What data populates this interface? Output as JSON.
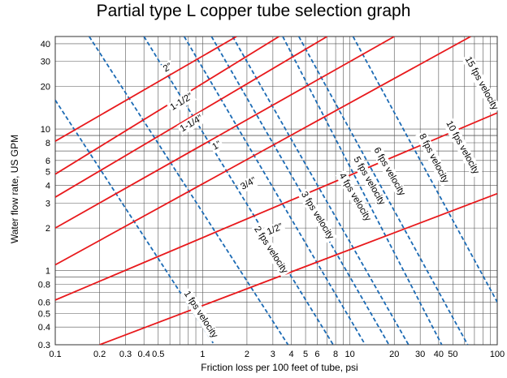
{
  "chart_data": {
    "type": "line",
    "title": "Partial type L copper tube selection graph",
    "xlabel": "Friction loss per 100 feet of tube, psi",
    "ylabel": "Water flow rate, US GPM",
    "x_scale": "log",
    "y_scale": "log",
    "xlim": [
      0.1,
      100
    ],
    "ylim": [
      0.3,
      45
    ],
    "x_ticks": [
      "0.1",
      "0.2",
      "0.3",
      "0.4",
      "0.5",
      "1",
      "2",
      "3",
      "4",
      "5",
      "6",
      "8",
      "10",
      "20",
      "30",
      "40",
      "50",
      "100"
    ],
    "y_ticks": [
      "0.3",
      "0.4",
      "0.5",
      "0.6",
      "0.8",
      "1",
      "2",
      "3",
      "4",
      "5",
      "6",
      "8",
      "10",
      "20",
      "30",
      "40"
    ],
    "x_tick_values": [
      0.1,
      0.2,
      0.3,
      0.4,
      0.5,
      1,
      2,
      3,
      4,
      5,
      6,
      8,
      10,
      20,
      30,
      40,
      50,
      100
    ],
    "y_tick_values": [
      0.3,
      0.4,
      0.5,
      0.6,
      0.8,
      1,
      2,
      3,
      4,
      5,
      6,
      8,
      10,
      20,
      30,
      40
    ],
    "grid": true,
    "series_groups": {
      "tube_sizes": {
        "color": "#e8191c",
        "style": "solid",
        "series": [
          {
            "name": "2”",
            "x": [
              0.1,
              1.7
            ],
            "y": [
              8.2,
              45
            ]
          },
          {
            "name": "1-1/2”",
            "x": [
              0.1,
              3.3
            ],
            "y": [
              4.8,
              45
            ]
          },
          {
            "name": "1-1/4”",
            "x": [
              0.1,
              7.0
            ],
            "y": [
              3.3,
              45
            ]
          },
          {
            "name": "1”",
            "x": [
              0.1,
              20
            ],
            "y": [
              2.0,
              45
            ]
          },
          {
            "name": "3/4”",
            "x": [
              0.1,
              66
            ],
            "y": [
              1.1,
              45
            ]
          },
          {
            "name": "1/2”",
            "x": [
              0.1,
              100
            ],
            "y": [
              0.62,
              13
            ]
          },
          {
            "name": "",
            "x": [
              0.2,
              100
            ],
            "y": [
              0.3,
              3.5
            ]
          }
        ]
      },
      "velocities": {
        "color": "#1b6ab4",
        "style": "dashed",
        "series": [
          {
            "name": "1 fps velocity",
            "x": [
              0.1,
              1.2
            ],
            "y": [
              16,
              0.3
            ]
          },
          {
            "name": "2 fps velocity",
            "x": [
              0.17,
              3.8
            ],
            "y": [
              45,
              0.3
            ]
          },
          {
            "name": "3 fps velocity",
            "x": [
              0.4,
              7.7
            ],
            "y": [
              45,
              0.3
            ]
          },
          {
            "name": "4 fps velocity",
            "x": [
              0.75,
              12.7
            ],
            "y": [
              45,
              0.3
            ]
          },
          {
            "name": "5 fps velocity",
            "x": [
              1.15,
              18.4
            ],
            "y": [
              45,
              0.3
            ]
          },
          {
            "name": "6 fps velocity",
            "x": [
              1.6,
              25
            ],
            "y": [
              45,
              0.3
            ]
          },
          {
            "name": "8 fps velocity",
            "x": [
              3.5,
              42
            ],
            "y": [
              45,
              0.3
            ]
          },
          {
            "name": "10 fps velocity",
            "x": [
              4.5,
              63
            ],
            "y": [
              45,
              0.3
            ]
          },
          {
            "name": "15 fps velocity",
            "x": [
              10.5,
              100
            ],
            "y": [
              45,
              0.6
            ]
          }
        ]
      }
    },
    "curve_labels": [
      {
        "text": "2”",
        "group": "tube_sizes",
        "index": 0,
        "x": 0.58,
        "y": 27
      },
      {
        "text": "1-1/2”",
        "group": "tube_sizes",
        "index": 1,
        "x": 0.72,
        "y": 15.5
      },
      {
        "text": "1-1/4”",
        "group": "tube_sizes",
        "index": 2,
        "x": 0.84,
        "y": 10.9
      },
      {
        "text": "1”",
        "group": "tube_sizes",
        "index": 3,
        "x": 1.25,
        "y": 7.6
      },
      {
        "text": "3/4”",
        "group": "tube_sizes",
        "index": 4,
        "x": 2.05,
        "y": 4.1
      },
      {
        "text": "1/2”",
        "group": "tube_sizes",
        "index": 5,
        "x": 3.1,
        "y": 1.95
      },
      {
        "text": "1 fps velocity",
        "group": "velocities",
        "index": 0,
        "x": 0.97,
        "y": 0.49
      },
      {
        "text": "2 fps velocity",
        "group": "velocities",
        "index": 1,
        "x": 2.9,
        "y": 1.4
      },
      {
        "text": "3 fps velocity",
        "group": "velocities",
        "index": 2,
        "x": 6.0,
        "y": 2.45
      },
      {
        "text": "4 fps velocity",
        "group": "velocities",
        "index": 3,
        "x": 10.8,
        "y": 3.3
      },
      {
        "text": "5 fps velocity",
        "group": "velocities",
        "index": 4,
        "x": 13.5,
        "y": 4.3
      },
      {
        "text": "6 fps velocity",
        "group": "velocities",
        "index": 5,
        "x": 18.5,
        "y": 5.0
      },
      {
        "text": "8 fps velocity",
        "group": "velocities",
        "index": 6,
        "x": 37,
        "y": 6.2
      },
      {
        "text": "10 fps velocity",
        "group": "velocities",
        "index": 7,
        "x": 58,
        "y": 7.4
      },
      {
        "text": "15 fps velocity",
        "group": "velocities",
        "index": 8,
        "x": 78,
        "y": 21
      }
    ]
  }
}
